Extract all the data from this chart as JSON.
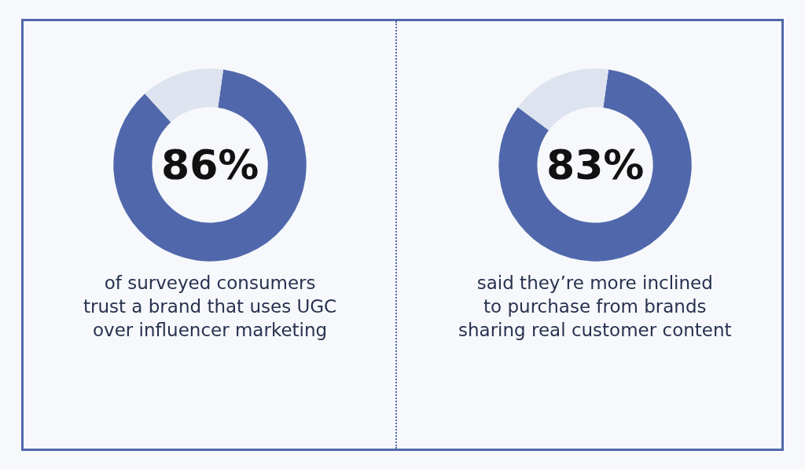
{
  "chart_data": [
    {
      "type": "donut",
      "categories": [
        null,
        null
      ],
      "values": [
        86,
        14
      ],
      "colors": [
        "#5068ab",
        "#dde3ef"
      ],
      "annotations": [
        "86%",
        "of surveyed consumers\ntrust a brand that uses UGC\nover influencer marketing"
      ]
    },
    {
      "type": "donut",
      "categories": [
        null,
        null
      ],
      "values": [
        83,
        17
      ],
      "colors": [
        "#5068ab",
        "#dde3ef"
      ],
      "annotations": [
        "83%",
        "said they’re more inclined\nto purchase from brands\nsharing real customer content"
      ]
    }
  ]
}
